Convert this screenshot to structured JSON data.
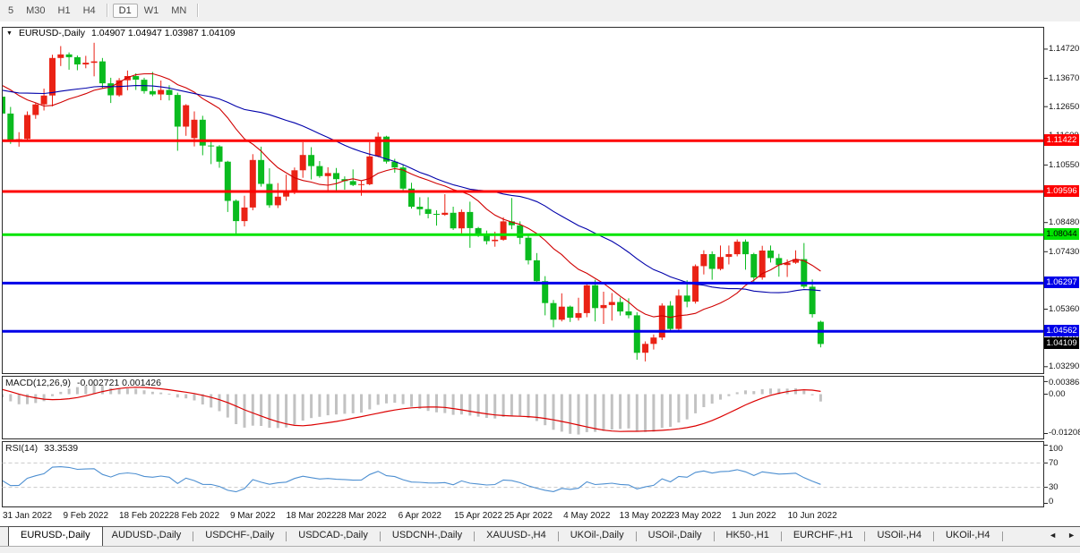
{
  "toolbar": {
    "timeframes": [
      {
        "label": "5",
        "active": false
      },
      {
        "label": "M30",
        "active": false
      },
      {
        "label": "H1",
        "active": false
      },
      {
        "label": "H4",
        "active": false
      },
      {
        "label": "D1",
        "active": true
      },
      {
        "label": "W1",
        "active": false
      },
      {
        "label": "MN",
        "active": false
      }
    ]
  },
  "chart": {
    "title_arrow": "▼",
    "symbol_label": "EURUSD-,Daily",
    "ohlc_label": "1.04907 1.04947 1.03987 1.04109"
  },
  "indicators": {
    "macd_name": "MACD(12,26,9)",
    "macd_values": "-0.002721 0.001426",
    "rsi_name": "RSI(14)",
    "rsi_value": "33.3539"
  },
  "chart_data": {
    "type": "candlestick",
    "symbol": "EURUSD-",
    "timeframe": "Daily",
    "ohlc_display": {
      "open": "1.04907",
      "high": "1.04947",
      "low": "1.03987",
      "close": "1.04109"
    },
    "colors": {
      "up": "#EA2215",
      "down": "#0ABB1F",
      "ma_fast": "#D00000",
      "ma_slow": "#0000AA",
      "macd_hist": "#C2C2C2",
      "macd_signal": "#DC0000",
      "rsi_line": "#4D8FD1",
      "hline_red": "#FE0000",
      "hline_green": "#00E400",
      "hline_blue": "#0000E8"
    },
    "price_axis": [
      [
        "1.14720",
        1.1472
      ],
      [
        "1.13670",
        1.1367
      ],
      [
        "1.12650",
        1.1265
      ],
      [
        "1.11600",
        1.116
      ],
      [
        "1.10550",
        1.1055
      ],
      [
        "1.09520",
        1.0952
      ],
      [
        "1.08480",
        1.0848
      ],
      [
        "1.07430",
        1.0743
      ],
      [
        "1.06390",
        1.0639
      ],
      [
        "1.05360",
        1.0536
      ],
      [
        "1.04310",
        1.0431
      ],
      [
        "1.03290",
        1.0329
      ]
    ],
    "hlines": [
      {
        "label": "1.11422",
        "price": 1.11422,
        "color": "#FE0000",
        "text_color": "#FFFFFF"
      },
      {
        "label": "1.09596",
        "price": 1.09596,
        "color": "#FE0000",
        "text_color": "#FFFFFF"
      },
      {
        "label": "1.08044",
        "price": 1.08044,
        "color": "#00E400",
        "text_color": "#000000"
      },
      {
        "label": "1.06297",
        "price": 1.06297,
        "color": "#0000E8",
        "text_color": "#FFFFFF"
      },
      {
        "label": "1.04562",
        "price": 1.04562,
        "color": "#0000E8",
        "text_color": "#FFFFFF"
      }
    ],
    "current_price": {
      "label": "1.04109",
      "price": 1.04109,
      "bg": "#000000",
      "text_color": "#FFFFFF"
    },
    "date_axis": [
      {
        "index": 3,
        "label": "31 Jan 2022"
      },
      {
        "index": 10,
        "label": "9 Feb 2022"
      },
      {
        "index": 17,
        "label": "18 Feb 2022"
      },
      {
        "index": 23,
        "label": "28 Feb 2022"
      },
      {
        "index": 30,
        "label": "9 Mar 2022"
      },
      {
        "index": 37,
        "label": "18 Mar 2022"
      },
      {
        "index": 43,
        "label": "28 Mar 2022"
      },
      {
        "index": 50,
        "label": "6 Apr 2022"
      },
      {
        "index": 57,
        "label": "15 Apr 2022"
      },
      {
        "index": 63,
        "label": "25 Apr 2022"
      },
      {
        "index": 70,
        "label": "4 May 2022"
      },
      {
        "index": 77,
        "label": "13 May 2022"
      },
      {
        "index": 83,
        "label": "23 May 2022"
      },
      {
        "index": 90,
        "label": "1 Jun 2022"
      },
      {
        "index": 97,
        "label": "10 Jun 2022"
      }
    ],
    "warmup_closes": [
      1.1268,
      1.1299,
      1.1284,
      1.1262,
      1.1287,
      1.1322,
      1.1339,
      1.131,
      1.1327,
      1.1299,
      1.1325,
      1.1286,
      1.1305,
      1.1324,
      1.1355,
      1.133,
      1.1296,
      1.1332,
      1.1355,
      1.1414,
      1.1434,
      1.1411,
      1.1455,
      1.1414,
      1.1312,
      1.128,
      1.1305,
      1.129,
      1.127,
      1.1258
    ],
    "candles": [
      [
        1.1301,
        1.131,
        1.1234,
        1.124
      ],
      [
        1.124,
        1.1264,
        1.1131,
        1.1145
      ],
      [
        1.1145,
        1.1173,
        1.1121,
        1.1148
      ],
      [
        1.1149,
        1.1248,
        1.1141,
        1.1235
      ],
      [
        1.1235,
        1.1279,
        1.1221,
        1.1273
      ],
      [
        1.1273,
        1.133,
        1.1251,
        1.1305
      ],
      [
        1.1305,
        1.1452,
        1.1266,
        1.144
      ],
      [
        1.144,
        1.1483,
        1.1411,
        1.1453
      ],
      [
        1.1453,
        1.146,
        1.1398,
        1.1443
      ],
      [
        1.1443,
        1.1449,
        1.1396,
        1.1417
      ],
      [
        1.1417,
        1.1448,
        1.1403,
        1.1423
      ],
      [
        1.1423,
        1.1495,
        1.1374,
        1.1428
      ],
      [
        1.1428,
        1.144,
        1.133,
        1.1349
      ],
      [
        1.1349,
        1.1369,
        1.1278,
        1.1306
      ],
      [
        1.1306,
        1.1368,
        1.1301,
        1.136
      ],
      [
        1.136,
        1.1395,
        1.1324,
        1.1375
      ],
      [
        1.1375,
        1.1385,
        1.1325,
        1.1362
      ],
      [
        1.1362,
        1.1369,
        1.1312,
        1.1321
      ],
      [
        1.1321,
        1.139,
        1.1303,
        1.1309
      ],
      [
        1.1309,
        1.1359,
        1.1288,
        1.1325
      ],
      [
        1.1325,
        1.1342,
        1.1287,
        1.1307
      ],
      [
        1.1307,
        1.1315,
        1.1106,
        1.1193
      ],
      [
        1.1193,
        1.1274,
        1.116,
        1.127
      ],
      [
        1.1152,
        1.1248,
        1.1122,
        1.1218
      ],
      [
        1.1218,
        1.1232,
        1.109,
        1.1125
      ],
      [
        1.1125,
        1.1139,
        1.1058,
        1.1122
      ],
      [
        1.1122,
        1.1126,
        1.1045,
        1.1067
      ],
      [
        1.1067,
        1.107,
        1.0886,
        1.0926
      ],
      [
        1.0926,
        1.0931,
        1.0806,
        1.0853
      ],
      [
        1.0853,
        1.0944,
        1.0834,
        1.0902
      ],
      [
        1.0902,
        1.1094,
        1.0892,
        1.1073
      ],
      [
        1.1073,
        1.1121,
        1.0977,
        1.0987
      ],
      [
        1.0987,
        1.1043,
        1.0901,
        1.091
      ],
      [
        1.091,
        1.099,
        1.09,
        1.0941
      ],
      [
        1.0941,
        1.102,
        1.0926,
        1.0955
      ],
      [
        1.0955,
        1.1046,
        1.095,
        1.1036
      ],
      [
        1.1036,
        1.1137,
        1.1009,
        1.1091
      ],
      [
        1.1091,
        1.1119,
        1.1003,
        1.1051
      ],
      [
        1.1051,
        1.1069,
        1.1009,
        1.1015
      ],
      [
        1.1015,
        1.1047,
        1.0961,
        1.1026
      ],
      [
        1.1026,
        1.1044,
        1.0963,
        1.1004
      ],
      [
        1.1004,
        1.1014,
        1.0966,
        1.0997
      ],
      [
        1.0997,
        1.1039,
        1.0979,
        1.0983
      ],
      [
        1.0983,
        1.0999,
        1.0944,
        1.0986
      ],
      [
        1.0986,
        1.1137,
        1.0982,
        1.1086
      ],
      [
        1.1086,
        1.1172,
        1.1083,
        1.1157
      ],
      [
        1.1157,
        1.116,
        1.106,
        1.1067
      ],
      [
        1.1067,
        1.1077,
        1.1027,
        1.1046
      ],
      [
        1.1046,
        1.1056,
        1.096,
        1.097
      ],
      [
        1.097,
        1.0991,
        1.0898,
        1.0905
      ],
      [
        1.0905,
        1.0939,
        1.0874,
        1.0896
      ],
      [
        1.0896,
        1.0939,
        1.0863,
        1.0879
      ],
      [
        1.0879,
        1.0892,
        1.0837,
        1.0876
      ],
      [
        1.0876,
        1.095,
        1.0872,
        1.0883
      ],
      [
        1.0883,
        1.0905,
        1.0821,
        1.0827
      ],
      [
        1.0827,
        1.0895,
        1.0809,
        1.0886
      ],
      [
        1.0886,
        1.0923,
        1.0757,
        1.0828
      ],
      [
        1.0828,
        1.0832,
        1.0796,
        1.0807
      ],
      [
        1.0807,
        1.0819,
        1.0769,
        1.0781
      ],
      [
        1.0781,
        1.0815,
        1.0761,
        1.0786
      ],
      [
        1.0786,
        1.0867,
        1.0782,
        1.0852
      ],
      [
        1.0852,
        1.0936,
        1.0824,
        1.0838
      ],
      [
        1.0838,
        1.0852,
        1.077,
        1.0793
      ],
      [
        1.0793,
        1.0804,
        1.0697,
        1.0712
      ],
      [
        1.0712,
        1.0738,
        1.0635,
        1.0637
      ],
      [
        1.0637,
        1.0655,
        1.0514,
        1.0558
      ],
      [
        1.0558,
        1.0569,
        1.0471,
        1.0498
      ],
      [
        1.0498,
        1.0593,
        1.0492,
        1.0545
      ],
      [
        1.0545,
        1.0549,
        1.049,
        1.0505
      ],
      [
        1.0505,
        1.0577,
        1.0495,
        1.0522
      ],
      [
        1.0522,
        1.0632,
        1.0507,
        1.0622
      ],
      [
        1.0622,
        1.0642,
        1.0492,
        1.054
      ],
      [
        1.054,
        1.0599,
        1.0483,
        1.0551
      ],
      [
        1.0551,
        1.0594,
        1.0495,
        1.0562
      ],
      [
        1.0562,
        1.0578,
        1.0513,
        1.0528
      ],
      [
        1.0528,
        1.0575,
        1.0503,
        1.0514
      ],
      [
        1.0514,
        1.0525,
        1.0354,
        1.0379
      ],
      [
        1.0379,
        1.042,
        1.0348,
        1.0411
      ],
      [
        1.0411,
        1.0445,
        1.0391,
        1.0434
      ],
      [
        1.0434,
        1.0557,
        1.0425,
        1.0549
      ],
      [
        1.0549,
        1.0565,
        1.0459,
        1.0465
      ],
      [
        1.0465,
        1.0607,
        1.0459,
        1.0585
      ],
      [
        1.0585,
        1.064,
        1.0543,
        1.0563
      ],
      [
        1.0563,
        1.0697,
        1.0556,
        1.0691
      ],
      [
        1.0691,
        1.0748,
        1.0661,
        1.0734
      ],
      [
        1.0734,
        1.0744,
        1.0642,
        1.0681
      ],
      [
        1.0681,
        1.0765,
        1.0676,
        1.0724
      ],
      [
        1.0724,
        1.0765,
        1.0697,
        1.0734
      ],
      [
        1.0734,
        1.0787,
        1.0726,
        1.0779
      ],
      [
        1.0779,
        1.0787,
        1.0678,
        1.0734
      ],
      [
        1.0734,
        1.0739,
        1.0627,
        1.065
      ],
      [
        1.065,
        1.0764,
        1.0642,
        1.0747
      ],
      [
        1.0747,
        1.0765,
        1.0704,
        1.072
      ],
      [
        1.072,
        1.0735,
        1.0653,
        1.0695
      ],
      [
        1.0695,
        1.0715,
        1.0652,
        1.0703
      ],
      [
        1.0703,
        1.0748,
        1.0699,
        1.0716
      ],
      [
        1.0716,
        1.0774,
        1.0611,
        1.0617
      ],
      [
        1.0617,
        1.0643,
        1.0506,
        1.0518
      ],
      [
        1.04907,
        1.04947,
        1.03987,
        1.04109
      ]
    ],
    "ma_fast_period": 13,
    "ma_slow_period": 30,
    "macd": {
      "fast": 12,
      "slow": 26,
      "signal": 9,
      "axis": [
        [
          "0.003865",
          0.003865
        ],
        [
          "0.00",
          0
        ],
        [
          "-0.01208",
          -0.01208
        ]
      ]
    },
    "rsi": {
      "period": 14,
      "axis": [
        [
          "100",
          100
        ],
        [
          "70",
          70
        ],
        [
          "30",
          30
        ],
        [
          "0",
          0
        ]
      ],
      "levels": [
        70,
        30
      ]
    }
  },
  "tabs": {
    "items": [
      {
        "label": "EURUSD-,Daily",
        "active": true
      },
      {
        "label": "AUDUSD-,Daily",
        "active": false
      },
      {
        "label": "USDCHF-,Daily",
        "active": false
      },
      {
        "label": "USDCAD-,Daily",
        "active": false
      },
      {
        "label": "USDCNH-,Daily",
        "active": false
      },
      {
        "label": "XAUUSD-,H4",
        "active": false
      },
      {
        "label": "UKOil-,Daily",
        "active": false
      },
      {
        "label": "USOil-,Daily",
        "active": false
      },
      {
        "label": "HK50-,H1",
        "active": false
      },
      {
        "label": "EURCHF-,H1",
        "active": false
      },
      {
        "label": "USOil-,H4",
        "active": false
      },
      {
        "label": "UKOil-,H4",
        "active": false
      }
    ],
    "nav_left": "◄",
    "nav_right": "►"
  }
}
